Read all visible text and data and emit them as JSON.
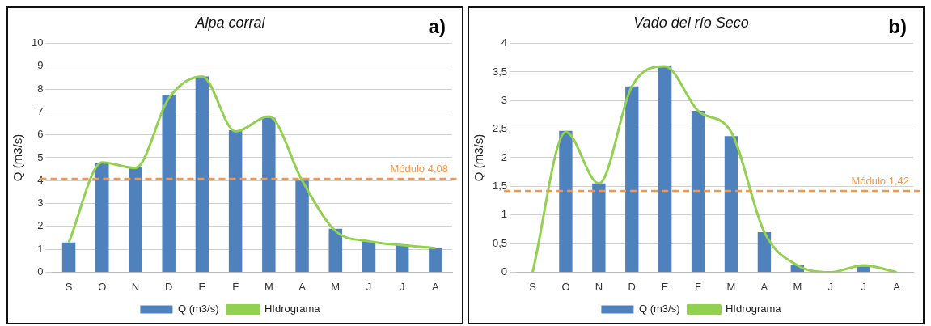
{
  "chart_data": [
    {
      "type": "bar",
      "title": "Alpa corral",
      "ylabel": "Q (m3/s)",
      "categories": [
        "S",
        "O",
        "N",
        "D",
        "E",
        "F",
        "M",
        "A",
        "M",
        "J",
        "J",
        "A"
      ],
      "series": [
        {
          "name": "Q (m3/s)",
          "color": "#4f81bd",
          "values": [
            1.3,
            4.75,
            4.6,
            7.75,
            8.55,
            6.2,
            6.75,
            4.0,
            1.9,
            1.35,
            1.2,
            1.05
          ]
        },
        {
          "name": "HIdrograma",
          "type": "line",
          "color": "#92d050",
          "values": [
            1.3,
            4.8,
            4.55,
            7.6,
            8.55,
            6.15,
            6.8,
            4.0,
            1.8,
            1.35,
            1.18,
            1.05
          ]
        }
      ],
      "ylim": [
        0,
        10
      ],
      "yticks": [
        0,
        1,
        2,
        3,
        4,
        5,
        6,
        7,
        8,
        9,
        10
      ],
      "grid": "y",
      "legend": "bottom",
      "marker": "none",
      "line_style": "solid",
      "ref_lines": [
        {
          "axis": "y",
          "value": 4.08,
          "label": "Módulo 4,08",
          "color": "#f79646",
          "line_style": "dashed"
        }
      ],
      "annotations": [
        "a)"
      ]
    },
    {
      "type": "bar",
      "title": "Vado del río Seco",
      "ylabel": "Q (m3/s)",
      "categories": [
        "S",
        "O",
        "N",
        "D",
        "E",
        "F",
        "M",
        "A",
        "M",
        "J",
        "J",
        "A"
      ],
      "series": [
        {
          "name": "Q (m3/s)",
          "color": "#4f81bd",
          "values": [
            0,
            2.47,
            1.55,
            3.25,
            3.6,
            2.82,
            2.38,
            0.7,
            0.12,
            0,
            0.1,
            0
          ]
        },
        {
          "name": "HIdrograma",
          "type": "line",
          "color": "#92d050",
          "values": [
            0,
            2.45,
            1.55,
            3.25,
            3.6,
            2.82,
            2.45,
            0.7,
            0.12,
            0,
            0.12,
            0
          ]
        }
      ],
      "ylim": [
        0,
        4
      ],
      "yticks": [
        0,
        {
          "value": 0.5,
          "label": "0,5"
        },
        1,
        {
          "value": 1.5,
          "label": "1,5"
        },
        2,
        {
          "value": 2.5,
          "label": "2,5"
        },
        3,
        {
          "value": 3.5,
          "label": "3,5"
        },
        4
      ],
      "grid": "y",
      "legend": "bottom",
      "marker": "none",
      "line_style": "solid",
      "ref_lines": [
        {
          "axis": "y",
          "value": 1.42,
          "label": "Módulo 1,42",
          "color": "#f79646",
          "line_style": "dashed"
        }
      ],
      "annotations": [
        "b)"
      ]
    }
  ]
}
